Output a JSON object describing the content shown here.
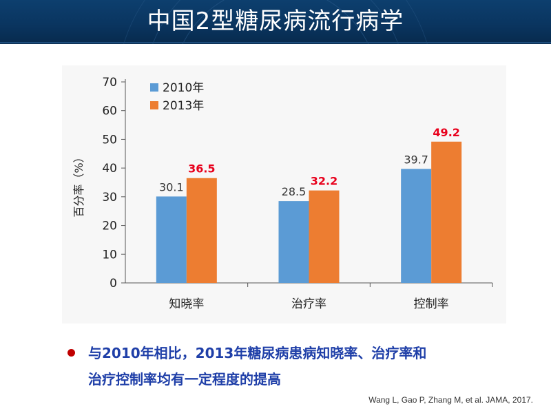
{
  "slide": {
    "title": "中国2型糖尿病流行病学",
    "bullet_line1": "与2010年相比，2013年糖尿病患病知晓率、治疗率和",
    "bullet_line2": "治疗控制率均有一定程度的提高",
    "citation": "Wang L, Gao P, Zhang M, et al. JAMA, 2017."
  },
  "colors": {
    "header_bg": "#0a3560",
    "series_2010": "#5b9bd5",
    "series_2013": "#ed7d31",
    "highlight_label": "#e8001c",
    "bullet_text": "#1f3fa8",
    "bullet_dot": "#c00000"
  },
  "chart_data": {
    "type": "bar",
    "title": "",
    "xlabel": "",
    "ylabel": "百分率（%）",
    "ylim": [
      0,
      70
    ],
    "yticks": [
      0,
      10,
      20,
      30,
      40,
      50,
      60,
      70
    ],
    "categories": [
      "知晓率",
      "治疗率",
      "控制率"
    ],
    "series": [
      {
        "name": "2010年",
        "values": [
          30.1,
          28.5,
          39.7
        ],
        "color": "#5b9bd5",
        "label_color": "#333333",
        "label_bold": false
      },
      {
        "name": "2013年",
        "values": [
          36.5,
          32.2,
          49.2
        ],
        "color": "#ed7d31",
        "label_color": "#e8001c",
        "label_bold": true
      }
    ],
    "legend": "top-left",
    "grid": false
  }
}
